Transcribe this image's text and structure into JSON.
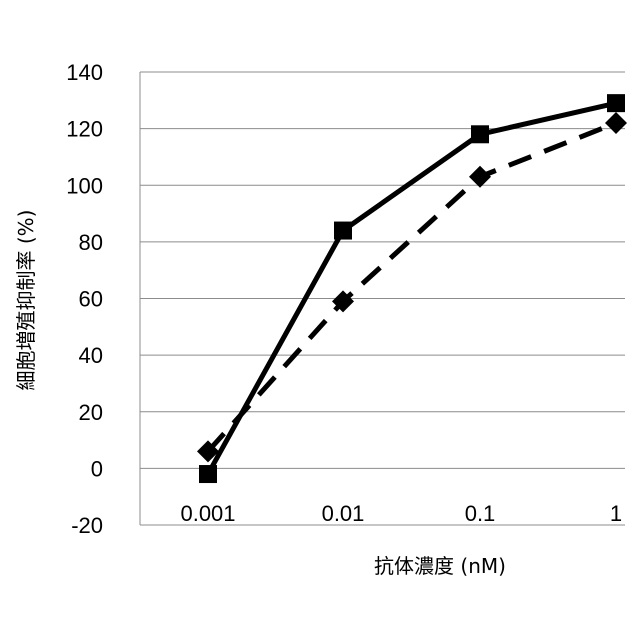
{
  "chart_data": {
    "type": "line",
    "xlabel": "抗体濃度 (nM)",
    "ylabel": "細胞増殖抑制率 (%)",
    "categories": [
      "0.001",
      "0.01",
      "0.1",
      "1"
    ],
    "yticks": [
      "140",
      "120",
      "100",
      "80",
      "60",
      "40",
      "20",
      "0",
      "-20"
    ],
    "ylim": [
      -20,
      140
    ],
    "grid": true,
    "series": [
      {
        "marker": "square",
        "line_style": "solid",
        "color": "#000000",
        "values": [
          -2,
          84,
          118,
          129
        ]
      },
      {
        "marker": "diamond",
        "line_style": "dashed",
        "color": "#000000",
        "values": [
          6,
          59,
          103,
          122
        ]
      }
    ]
  }
}
